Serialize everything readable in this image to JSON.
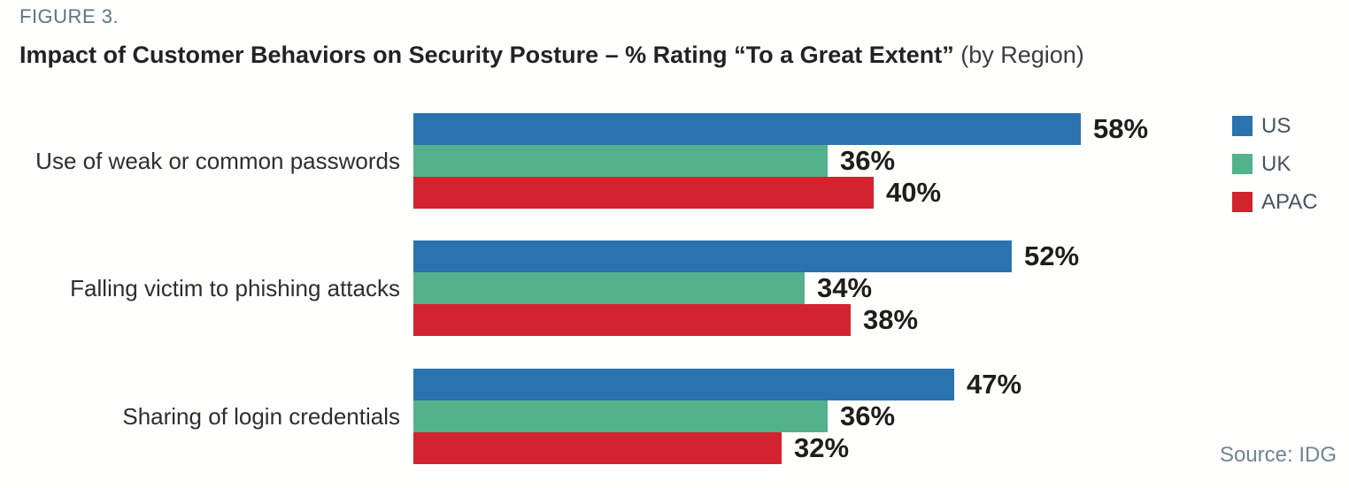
{
  "header": {
    "figure_label": "FIGURE 3.",
    "title_bold": "Impact of Customer Behaviors on Security Posture – % Rating “To a Great Extent”",
    "title_suffix": " (by Region)"
  },
  "footer": {
    "source": "Source: IDG"
  },
  "chart_data": {
    "type": "bar",
    "orientation": "horizontal",
    "title": "Impact of Customer Behaviors on Security Posture – % Rating “To a Great Extent” (by Region)",
    "categories": [
      "Use of weak or common passwords",
      "Falling victim to phishing attacks",
      "Sharing of login credentials"
    ],
    "series": [
      {
        "name": "US",
        "color": "#2b73ae",
        "values": [
          58,
          52,
          47
        ]
      },
      {
        "name": "UK",
        "color": "#53b28b",
        "values": [
          36,
          34,
          36
        ]
      },
      {
        "name": "APAC",
        "color": "#d2232e",
        "values": [
          40,
          38,
          32
        ]
      }
    ],
    "value_suffix": "%",
    "xlim": [
      0,
      60
    ],
    "grid": false,
    "legend_position": "top-right",
    "value_labels": "outside-end"
  }
}
